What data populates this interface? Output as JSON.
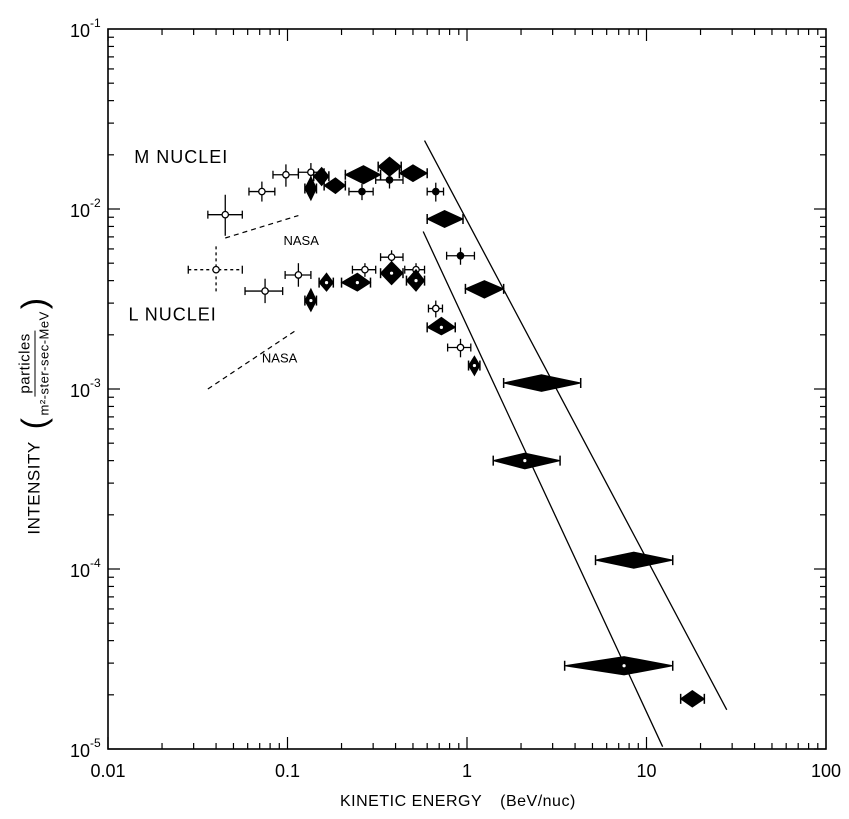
{
  "chart_data": {
    "type": "scatter",
    "xscale": "log",
    "yscale": "log",
    "xlim": [
      0.01,
      100
    ],
    "ylim": [
      1e-05,
      0.1
    ],
    "xlabel": "KINETIC ENERGY",
    "xlabel_unit": "(BeV/nuc)",
    "ylabel": "INTENSITY",
    "ylabel_units": {
      "numerator": "particles",
      "denominator": "m²-ster-sec-MeV"
    },
    "x_ticks": [
      {
        "value": 0.01,
        "label": "0.01"
      },
      {
        "value": 0.1,
        "label": "0.1"
      },
      {
        "value": 1,
        "label": "1"
      },
      {
        "value": 10,
        "label": "10"
      },
      {
        "value": 100,
        "label": "100"
      }
    ],
    "y_ticks": [
      {
        "value": 0.1,
        "exp": "-1"
      },
      {
        "value": 0.01,
        "exp": "-2"
      },
      {
        "value": 0.001,
        "exp": "-3"
      },
      {
        "value": 0.0001,
        "exp": "-4"
      },
      {
        "value": 1e-05,
        "exp": "-5"
      }
    ],
    "annotations": [
      {
        "text": "M NUCLEI",
        "x": 0.014,
        "y": 0.018
      },
      {
        "text": "L NUCLEI",
        "x": 0.013,
        "y": 0.0024
      },
      {
        "text": "NASA",
        "x": 0.095,
        "y": 0.0063
      },
      {
        "text": "NASA",
        "x": 0.072,
        "y": 0.0014
      }
    ],
    "series": [
      {
        "group": "M",
        "style": "open-circle",
        "points": [
          {
            "x": 0.045,
            "y": 0.0093,
            "xerr": [
              0.036,
              0.056
            ],
            "yerr": [
              0.0071,
              0.012
            ]
          },
          {
            "x": 0.072,
            "y": 0.0125,
            "xerr": [
              0.061,
              0.085
            ],
            "yerr": [
              0.011,
              0.0142
            ]
          },
          {
            "x": 0.098,
            "y": 0.0155,
            "xerr": [
              0.083,
              0.115
            ],
            "yerr": [
              0.0133,
              0.0177
            ]
          },
          {
            "x": 0.135,
            "y": 0.016,
            "xerr": [
              0.115,
              0.16
            ],
            "yerr": [
              0.014,
              0.018
            ]
          }
        ]
      },
      {
        "group": "M",
        "style": "filled-circle",
        "points": [
          {
            "x": 0.26,
            "y": 0.0125,
            "xerr": [
              0.22,
              0.3
            ],
            "yerr": [
              0.0112,
              0.0138
            ]
          },
          {
            "x": 0.37,
            "y": 0.0145,
            "xerr": [
              0.31,
              0.44
            ],
            "yerr": [
              0.013,
              0.016
            ]
          },
          {
            "x": 0.67,
            "y": 0.0125,
            "xerr": [
              0.6,
              0.74
            ],
            "yerr": [
              0.011,
              0.014
            ]
          },
          {
            "x": 0.92,
            "y": 0.0055,
            "xerr": [
              0.77,
              1.1
            ],
            "yerr": [
              0.0049,
              0.0061
            ]
          }
        ]
      },
      {
        "group": "M",
        "style": "filled-diamond",
        "points": [
          {
            "x": 0.135,
            "y": 0.013,
            "xerr": [
              0.125,
              0.145
            ],
            "yerr": [
              0.0112,
              0.0151
            ]
          },
          {
            "x": 0.155,
            "y": 0.0152,
            "xerr": [
              0.14,
              0.17
            ],
            "yerr": [
              0.0135,
              0.017
            ]
          },
          {
            "x": 0.185,
            "y": 0.0135,
            "xerr": [
              0.16,
              0.21
            ],
            "yerr": [
              0.0122,
              0.0149
            ]
          },
          {
            "x": 0.265,
            "y": 0.0155,
            "xerr": [
              0.21,
              0.33
            ],
            "yerr": [
              0.0138,
              0.0174
            ]
          },
          {
            "x": 0.37,
            "y": 0.0172,
            "xerr": [
              0.32,
              0.43
            ],
            "yerr": [
              0.0152,
              0.0194
            ]
          },
          {
            "x": 0.5,
            "y": 0.0158,
            "xerr": [
              0.42,
              0.6
            ],
            "yerr": [
              0.0142,
              0.0176
            ]
          },
          {
            "x": 0.75,
            "y": 0.0088,
            "xerr": [
              0.6,
              0.95
            ],
            "yerr": [
              0.0079,
              0.0098
            ]
          },
          {
            "x": 1.25,
            "y": 0.0036,
            "xerr": [
              0.98,
              1.6
            ],
            "yerr": [
              0.0032,
              0.004
            ]
          },
          {
            "x": 2.6,
            "y": 0.00108,
            "xerr": [
              1.6,
              4.3
            ],
            "yerr": [
              0.00097,
              0.0012
            ]
          },
          {
            "x": 8.5,
            "y": 0.000112,
            "xerr": [
              5.2,
              14
            ],
            "yerr": [
              0.000101,
              0.000124
            ]
          },
          {
            "x": 18,
            "y": 1.9e-05,
            "xerr": [
              15.5,
              21
            ],
            "yerr": [
              1.71e-05,
              2.11e-05
            ]
          }
        ]
      },
      {
        "group": "L",
        "style": "open-circle",
        "points": [
          {
            "x": 0.04,
            "y": 0.0046,
            "xerr": [
              0.028,
              0.056
            ],
            "yerr": [
              0.0034,
              0.0062
            ],
            "dashed": true
          },
          {
            "x": 0.075,
            "y": 0.0035,
            "xerr": [
              0.058,
              0.094
            ],
            "yerr": [
              0.003,
              0.0041
            ]
          },
          {
            "x": 0.115,
            "y": 0.0043,
            "xerr": [
              0.097,
              0.135
            ],
            "yerr": [
              0.0037,
              0.005
            ]
          },
          {
            "x": 0.27,
            "y": 0.0046,
            "xerr": [
              0.23,
              0.31
            ],
            "yerr": [
              0.0042,
              0.005
            ]
          },
          {
            "x": 0.38,
            "y": 0.0054,
            "xerr": [
              0.33,
              0.44
            ],
            "yerr": [
              0.0049,
              0.0059
            ]
          },
          {
            "x": 0.52,
            "y": 0.0046,
            "xerr": [
              0.45,
              0.58
            ],
            "yerr": [
              0.0042,
              0.005
            ]
          },
          {
            "x": 0.67,
            "y": 0.0028,
            "xerr": [
              0.61,
              0.73
            ],
            "yerr": [
              0.0025,
              0.0031
            ]
          },
          {
            "x": 0.92,
            "y": 0.0017,
            "xerr": [
              0.78,
              1.05
            ],
            "yerr": [
              0.0015,
              0.0019
            ]
          }
        ]
      },
      {
        "group": "L",
        "style": "filled-diamond",
        "points": [
          {
            "x": 0.135,
            "y": 0.0031,
            "xerr": [
              0.125,
              0.145
            ],
            "yerr": [
              0.0027,
              0.0036
            ]
          },
          {
            "x": 0.165,
            "y": 0.0039,
            "xerr": [
              0.15,
              0.18
            ],
            "yerr": [
              0.0035,
              0.0044
            ]
          },
          {
            "x": 0.245,
            "y": 0.0039,
            "xerr": [
              0.2,
              0.29
            ],
            "yerr": [
              0.0035,
              0.0044
            ]
          },
          {
            "x": 0.38,
            "y": 0.0044,
            "xerr": [
              0.33,
              0.44
            ],
            "yerr": [
              0.0038,
              0.0051
            ]
          },
          {
            "x": 0.52,
            "y": 0.004,
            "xerr": [
              0.46,
              0.58
            ],
            "yerr": [
              0.0035,
              0.0046
            ]
          },
          {
            "x": 0.72,
            "y": 0.0022,
            "xerr": [
              0.6,
              0.86
            ],
            "yerr": [
              0.002,
              0.0025
            ]
          },
          {
            "x": 1.1,
            "y": 0.00135,
            "xerr": [
              1.02,
              1.18
            ],
            "yerr": [
              0.00119,
              0.00152
            ]
          },
          {
            "x": 2.1,
            "y": 0.0004,
            "xerr": [
              1.4,
              3.3
            ],
            "yerr": [
              0.00036,
              0.00044
            ]
          },
          {
            "x": 7.5,
            "y": 2.9e-05,
            "xerr": [
              3.5,
              14
            ],
            "yerr": [
              2.58e-05,
              3.26e-05
            ]
          }
        ]
      }
    ],
    "fit_lines": [
      {
        "group": "M",
        "points": [
          [
            0.58,
            0.024
          ],
          [
            28,
            1.65e-05
          ]
        ]
      },
      {
        "group": "L",
        "points": [
          [
            0.57,
            0.0075
          ],
          [
            12.3,
            1.03e-05
          ]
        ]
      }
    ],
    "nasa_lines": [
      {
        "group": "M",
        "points": [
          [
            0.045,
            0.0069
          ],
          [
            0.115,
            0.0092
          ]
        ]
      },
      {
        "group": "L",
        "points": [
          [
            0.036,
            0.001
          ],
          [
            0.11,
            0.0021
          ]
        ]
      }
    ]
  }
}
